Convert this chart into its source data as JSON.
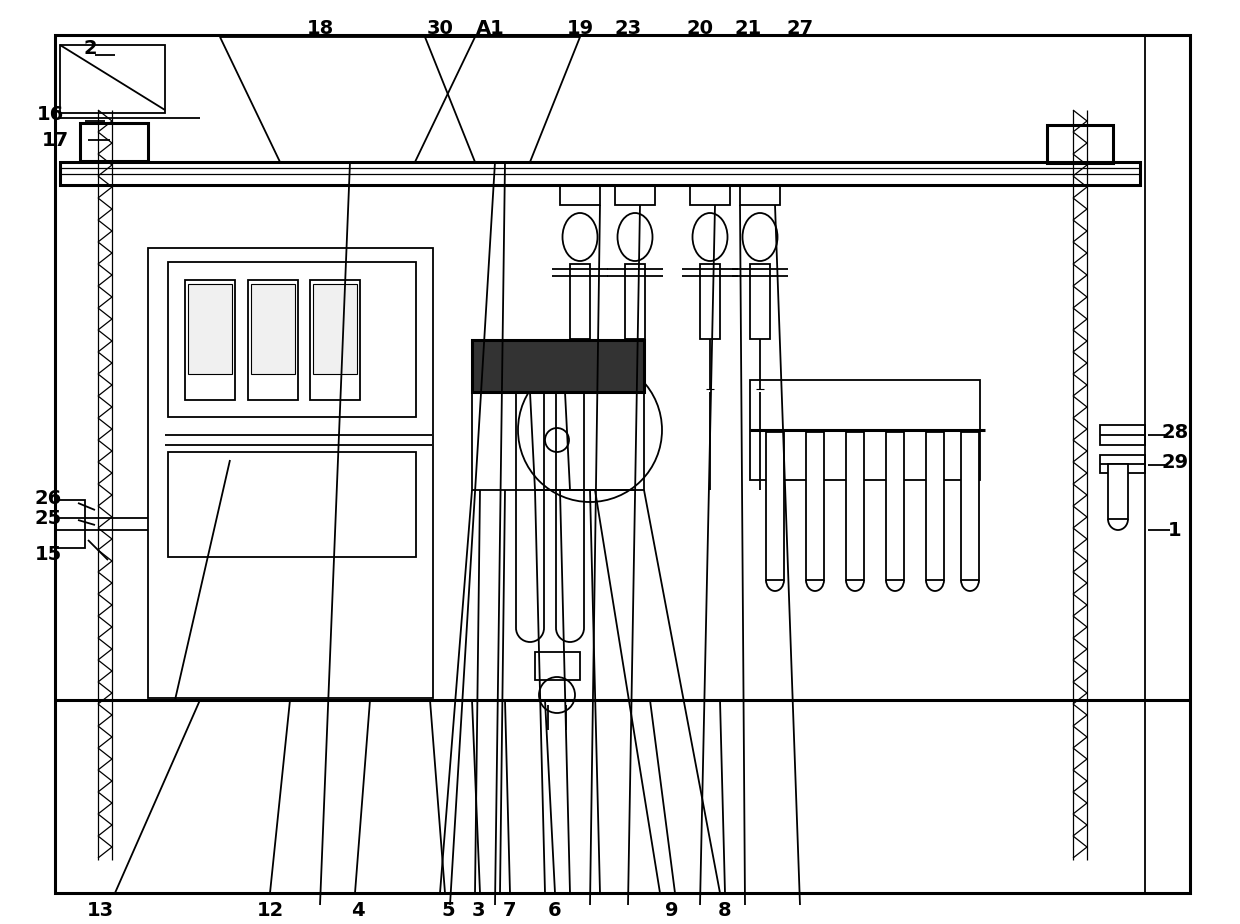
{
  "bg_color": "#ffffff",
  "lc": "#000000",
  "lw": 1.3,
  "tlw": 2.2,
  "fig_w": 12.4,
  "fig_h": 9.24
}
